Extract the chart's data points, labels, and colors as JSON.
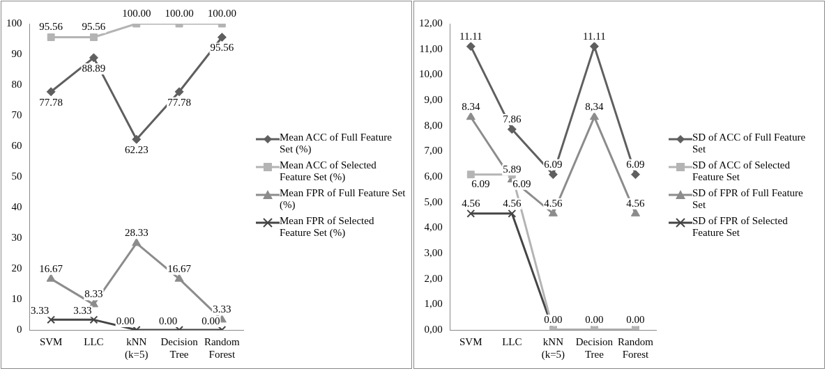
{
  "chart_data": [
    {
      "type": "line",
      "categories": [
        "SVM",
        "LLC",
        "kNN (k=5)",
        "Decision Tree",
        "Random Forest"
      ],
      "ylim": [
        0,
        100
      ],
      "yticks": [
        0,
        10,
        20,
        30,
        40,
        50,
        60,
        70,
        80,
        90,
        100
      ],
      "grid": false,
      "legend": "right",
      "series": [
        {
          "name": "Mean ACC of Full Feature Set (%)",
          "color": "#5f5f5f",
          "marker": "diamond",
          "values": [
            77.78,
            88.89,
            62.23,
            77.78,
            95.56
          ],
          "value_labels": [
            "77.78",
            "88.89",
            "62.23",
            "77.78",
            "95.56"
          ]
        },
        {
          "name": "Mean ACC of Selected Feature Set (%)",
          "color": "#b4b4b4",
          "marker": "square",
          "values": [
            95.56,
            95.56,
            100,
            100,
            100
          ],
          "value_labels": [
            "95.56",
            "95.56",
            "100.00",
            "100.00",
            "100.00"
          ]
        },
        {
          "name": "Mean FPR of Full Feature Set (%)",
          "color": "#8c8c8c",
          "marker": "triangle",
          "values": [
            16.67,
            8.33,
            28.33,
            16.67,
            3.33
          ],
          "value_labels": [
            "16.67",
            "8.33",
            "28.33",
            "16.67",
            "3.33"
          ]
        },
        {
          "name": "Mean FPR of Selected Feature Set (%)",
          "color": "#454545",
          "marker": "cross",
          "values": [
            3.33,
            3.33,
            0,
            0,
            0
          ],
          "value_labels": [
            "3.33",
            "3.33",
            "0.00",
            "0.00",
            "0.00"
          ]
        }
      ]
    },
    {
      "type": "line",
      "categories": [
        "SVM",
        "LLC",
        "kNN (k=5)",
        "Decision Tree",
        "Random Forest"
      ],
      "ylim": [
        0,
        12
      ],
      "yticks": [
        {
          "value": 0,
          "label": "0,00"
        },
        {
          "value": 1,
          "label": "1,00"
        },
        {
          "value": 2,
          "label": "2,00"
        },
        {
          "value": 3,
          "label": "3,00"
        },
        {
          "value": 4,
          "label": "4,00"
        },
        {
          "value": 5,
          "label": "5,00"
        },
        {
          "value": 6,
          "label": "6,00"
        },
        {
          "value": 7,
          "label": "7,00"
        },
        {
          "value": 8,
          "label": "8,00"
        },
        {
          "value": 9,
          "label": "9,00"
        },
        {
          "value": 10,
          "label": "10,00"
        },
        {
          "value": 11,
          "label": "11,00"
        },
        {
          "value": 12,
          "label": "12,00"
        }
      ],
      "grid": false,
      "legend": "right",
      "series": [
        {
          "name": "SD of ACC of Full Feature Set",
          "color": "#5f5f5f",
          "marker": "diamond",
          "values": [
            11.11,
            7.86,
            6.09,
            11.11,
            6.09
          ],
          "value_labels": [
            "11.11",
            "7.86",
            "6.09",
            "11.11",
            "6.09"
          ]
        },
        {
          "name": "SD of ACC of Selected Feature Set",
          "color": "#b4b4b4",
          "marker": "square",
          "values": [
            6.09,
            6.09,
            0,
            0,
            0
          ],
          "value_labels": [
            "6.09",
            "6.09",
            null,
            null,
            null
          ]
        },
        {
          "name": "SD of FPR of Full Feature Set",
          "color": "#8c8c8c",
          "marker": "triangle",
          "values": [
            8.34,
            5.89,
            4.56,
            8.34,
            4.56
          ],
          "value_labels": [
            "8.34",
            "5.89",
            "4.56",
            "8,34",
            "4.56"
          ]
        },
        {
          "name": "SD of FPR of Selected Feature Set",
          "color": "#454545",
          "marker": "cross",
          "values": [
            4.56,
            4.56,
            0,
            0,
            0
          ],
          "value_labels": [
            "4.56",
            "4.56",
            "0.00",
            "0.00",
            "0.00"
          ]
        }
      ]
    }
  ]
}
